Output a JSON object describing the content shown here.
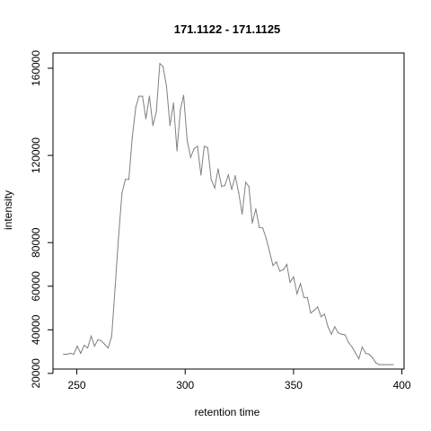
{
  "chart_data": {
    "type": "line",
    "title": "171.1122 - 171.1125",
    "xlabel": "retention time",
    "ylabel": "intensity",
    "xlim": [
      239,
      401
    ],
    "ylim": [
      22000,
      167000
    ],
    "x_ticks": [
      250,
      300,
      350,
      400
    ],
    "y_ticks": [
      20000,
      40000,
      60000,
      80000,
      120000,
      160000
    ],
    "x_tick_labels": [
      "250",
      "300",
      "350",
      "400"
    ],
    "y_tick_labels": [
      "20000",
      "40000",
      "60000",
      "80000",
      "120000",
      "160000"
    ],
    "grid": false,
    "line_color": "#808080",
    "series": [
      {
        "x": [
          243.9,
          245.5,
          247.1,
          248.6,
          250.2,
          251.8,
          253.4,
          255.0,
          256.6,
          258.2,
          259.7,
          261.3,
          262.9,
          264.5,
          266.1,
          267.7,
          269.2,
          270.8,
          272.4,
          274.0,
          275.6,
          277.2,
          278.7,
          280.3,
          281.9,
          283.5,
          285.1,
          286.7,
          288.3,
          289.8,
          291.4,
          293.0,
          294.6,
          296.2,
          297.8,
          299.3,
          300.9,
          302.5,
          304.1,
          305.7,
          307.3,
          308.8,
          310.4,
          312.0,
          313.6,
          315.2,
          316.8,
          318.3,
          319.9,
          321.5,
          323.1,
          324.7,
          326.3,
          327.9,
          329.4,
          331.0,
          332.6,
          334.2,
          335.8,
          337.4,
          338.9,
          340.5,
          342.1,
          343.7,
          345.3,
          346.9,
          348.4,
          350.0,
          351.6,
          353.2,
          354.8,
          356.4,
          357.9,
          359.5,
          361.1,
          362.7,
          364.3,
          365.9,
          367.5,
          369.0,
          370.6,
          372.2,
          373.8,
          375.4,
          377.0,
          378.5,
          380.1,
          381.7,
          383.3,
          384.9,
          386.5,
          388.0,
          389.6,
          391.2,
          392.8,
          394.4,
          396.0
        ],
        "y": [
          28800,
          28800,
          29200,
          28800,
          32500,
          29200,
          32900,
          31700,
          37100,
          32500,
          35400,
          35000,
          33300,
          31700,
          37100,
          60100,
          81900,
          102600,
          109000,
          109000,
          128300,
          142100,
          147200,
          147200,
          136800,
          147200,
          133700,
          140000,
          162200,
          160700,
          151600,
          133700,
          144000,
          122100,
          141000,
          147600,
          127000,
          119100,
          123100,
          124200,
          111000,
          124200,
          123500,
          109000,
          105100,
          113800,
          105800,
          106200,
          111000,
          104400,
          110700,
          102900,
          93100,
          107700,
          105800,
          89000,
          95500,
          87000,
          86700,
          81900,
          76000,
          69500,
          71100,
          66900,
          67600,
          70000,
          61800,
          64300,
          56500,
          61200,
          54800,
          54800,
          47700,
          48900,
          50500,
          46000,
          47200,
          41400,
          38000,
          41400,
          38700,
          38000,
          37600,
          34200,
          32100,
          29500,
          26700,
          32100,
          29200,
          28800,
          27100,
          24800,
          24000,
          24000,
          24000,
          24000,
          24000
        ]
      }
    ]
  }
}
